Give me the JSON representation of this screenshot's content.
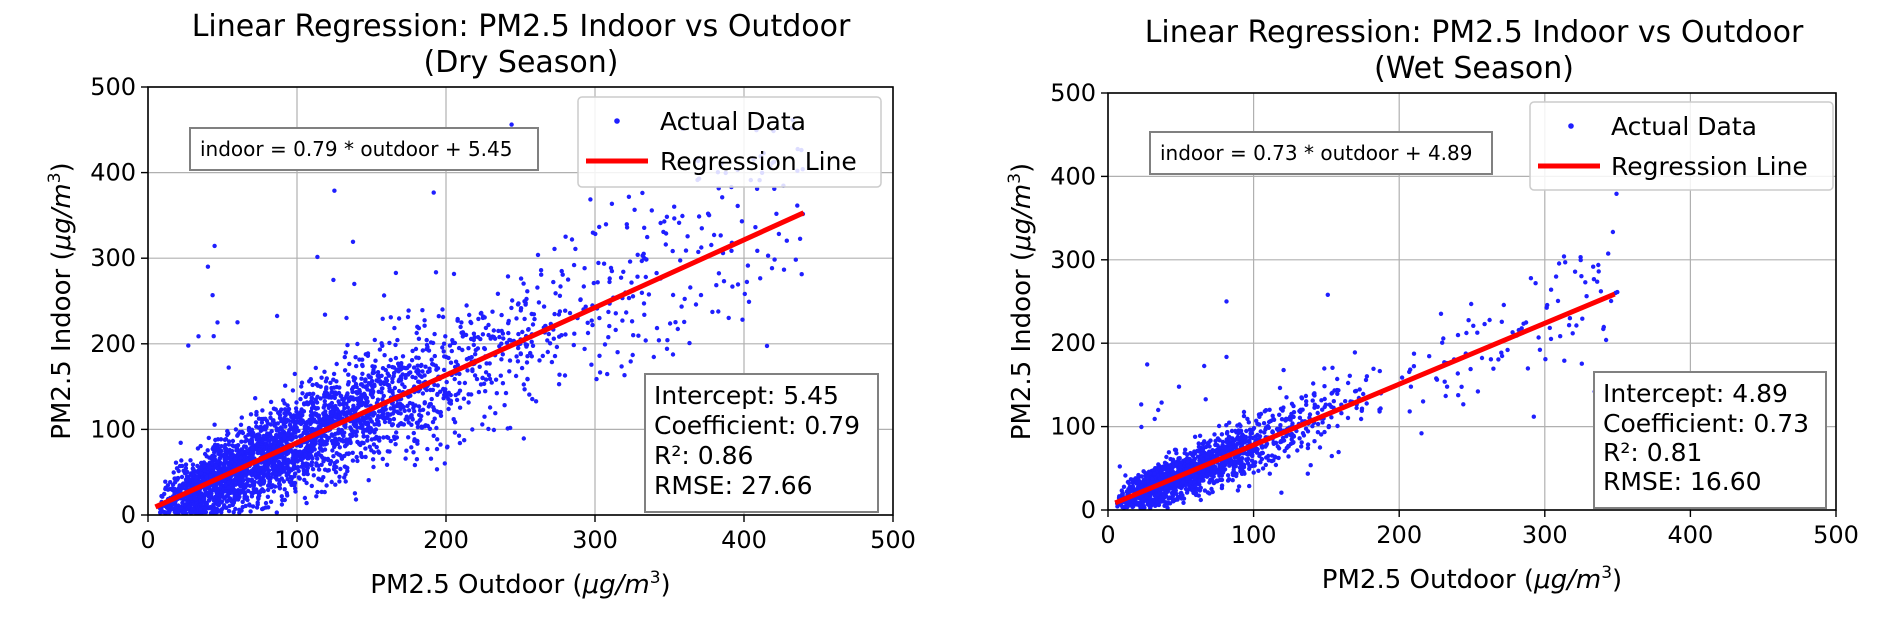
{
  "chart_data": [
    {
      "type": "scatter",
      "title_line1": "Linear Regression: PM2.5 Indoor vs Outdoor",
      "title_line2": "(Dry Season)",
      "xlabel": "PM2.5 Outdoor (μg/m³)",
      "ylabel": "PM2.5 Indoor (μg/m³)",
      "xlim": [
        0,
        500
      ],
      "ylim": [
        0,
        500
      ],
      "xticks": [
        "0",
        "100",
        "200",
        "300",
        "400",
        "500"
      ],
      "yticks": [
        "0",
        "100",
        "200",
        "300",
        "400",
        "500"
      ],
      "grid": true,
      "equation": "indoor = 0.79 * outdoor + 5.45",
      "legend": {
        "position": "upper-right",
        "scatter_label": "Actual Data",
        "line_label": "Regression Line"
      },
      "stats": {
        "intercept": "Intercept: 5.45",
        "coefficient": "Coefficient: 0.79",
        "r2": "R²: 0.86",
        "rmse": "RMSE: 27.66"
      },
      "regression": {
        "slope": 0.79,
        "intercept": 5.45,
        "x_range": [
          5,
          440
        ]
      },
      "scatter_x_range": [
        5,
        440
      ],
      "point_color": "#1f1fff",
      "line_color": "#ff0000"
    },
    {
      "type": "scatter",
      "title_line1": "Linear Regression: PM2.5 Indoor vs Outdoor",
      "title_line2": "(Wet Season)",
      "xlabel": "PM2.5 Outdoor (μg/m³)",
      "ylabel": "PM2.5 Indoor (μg/m³)",
      "xlim": [
        0,
        500
      ],
      "ylim": [
        0,
        500
      ],
      "xticks": [
        "0",
        "100",
        "200",
        "300",
        "400",
        "500"
      ],
      "yticks": [
        "0",
        "100",
        "200",
        "300",
        "400",
        "500"
      ],
      "grid": true,
      "equation": "indoor = 0.73 * outdoor + 4.89",
      "legend": {
        "position": "upper-right",
        "scatter_label": "Actual Data",
        "line_label": "Regression Line"
      },
      "stats": {
        "intercept": "Intercept: 4.89",
        "coefficient": "Coefficient: 0.73",
        "r2": "R²: 0.81",
        "rmse": "RMSE: 16.60"
      },
      "regression": {
        "slope": 0.73,
        "intercept": 4.89,
        "x_range": [
          5,
          348
        ]
      },
      "scatter_x_range": [
        5,
        350
      ],
      "point_color": "#1f1fff",
      "line_color": "#ff0000"
    }
  ]
}
